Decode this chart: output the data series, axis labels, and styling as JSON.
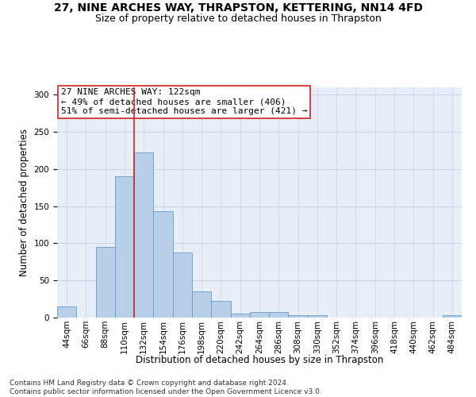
{
  "title_line1": "27, NINE ARCHES WAY, THRAPSTON, KETTERING, NN14 4FD",
  "title_line2": "Size of property relative to detached houses in Thrapston",
  "xlabel": "Distribution of detached houses by size in Thrapston",
  "ylabel": "Number of detached properties",
  "bins": [
    "44sqm",
    "66sqm",
    "88sqm",
    "110sqm",
    "132sqm",
    "154sqm",
    "176sqm",
    "198sqm",
    "220sqm",
    "242sqm",
    "264sqm",
    "286sqm",
    "308sqm",
    "330sqm",
    "352sqm",
    "374sqm",
    "396sqm",
    "418sqm",
    "440sqm",
    "462sqm",
    "484sqm"
  ],
  "values": [
    15,
    0,
    95,
    190,
    222,
    143,
    88,
    35,
    22,
    5,
    7,
    7,
    3,
    3,
    0,
    0,
    0,
    0,
    0,
    0,
    3
  ],
  "bar_color": "#b8cfe8",
  "bar_edge_color": "#6699cc",
  "vline_color": "#cc2222",
  "vline_x_idx": 4,
  "annotation_text": "27 NINE ARCHES WAY: 122sqm\n← 49% of detached houses are smaller (406)\n51% of semi-detached houses are larger (421) →",
  "annotation_box_facecolor": "white",
  "annotation_box_edgecolor": "#cc2222",
  "ylim_max": 310,
  "yticks": [
    0,
    50,
    100,
    150,
    200,
    250,
    300
  ],
  "grid_color": "#c8d4e4",
  "bg_color": "#e8eef8",
  "footnote": "Contains HM Land Registry data © Crown copyright and database right 2024.\nContains public sector information licensed under the Open Government Licence v3.0.",
  "title_fontsize": 10,
  "subtitle_fontsize": 9,
  "axis_label_fontsize": 8.5,
  "tick_fontsize": 7.5,
  "annotation_fontsize": 8,
  "footnote_fontsize": 6.5
}
